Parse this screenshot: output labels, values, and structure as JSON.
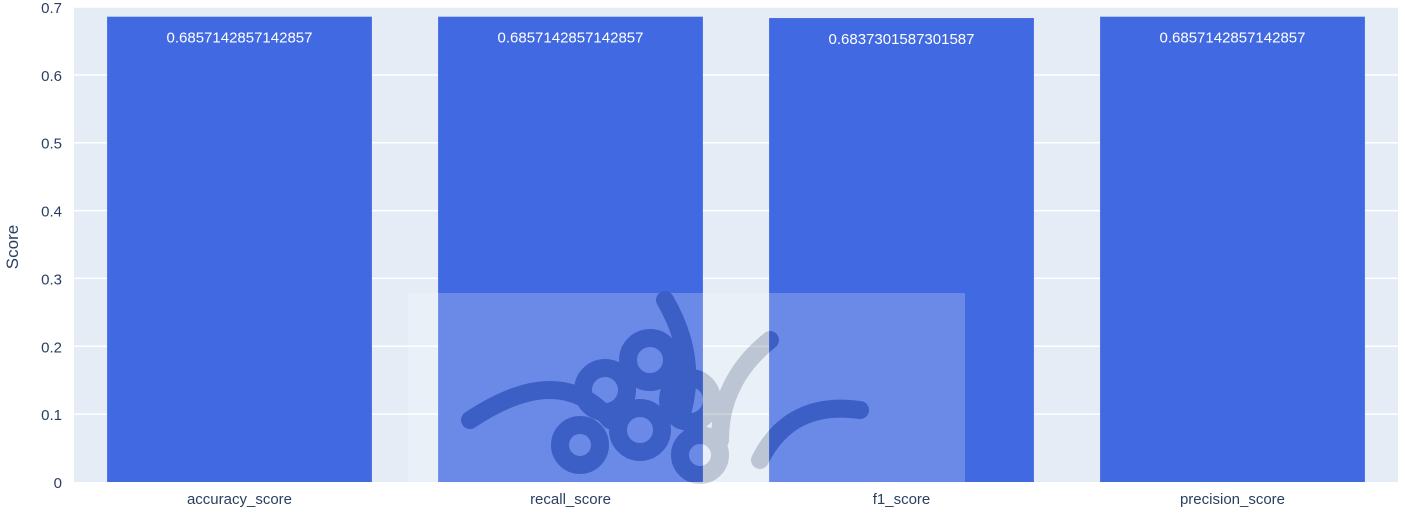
{
  "chart_data": {
    "type": "bar",
    "categories": [
      "accuracy_score",
      "recall_score",
      "f1_score",
      "precision_score"
    ],
    "values": [
      0.6857142857142857,
      0.6857142857142857,
      0.6837301587301587,
      0.6857142857142857
    ],
    "value_labels": [
      "0.6857142857142857",
      "0.6857142857142857",
      "0.6837301587301587",
      "0.6857142857142857"
    ],
    "title": "",
    "xlabel": "",
    "ylabel": "Score",
    "ylim": [
      0,
      0.7
    ],
    "yticks": [
      0,
      0.1,
      0.2,
      0.3,
      0.4,
      0.5,
      0.6,
      0.7
    ],
    "ytick_labels": [
      "0",
      "0.1",
      "0.2",
      "0.3",
      "0.4",
      "0.5",
      "0.6",
      "0.7"
    ],
    "grid": true,
    "legend": "none"
  },
  "colors": {
    "bar": "#4169e1",
    "plot_bg": "#e5ecf6",
    "grid": "#ffffff",
    "text": "#2a3f5f",
    "value_label": "#ffffff"
  },
  "watermark": {
    "icon": "ornamental-star-watermark-icon"
  }
}
